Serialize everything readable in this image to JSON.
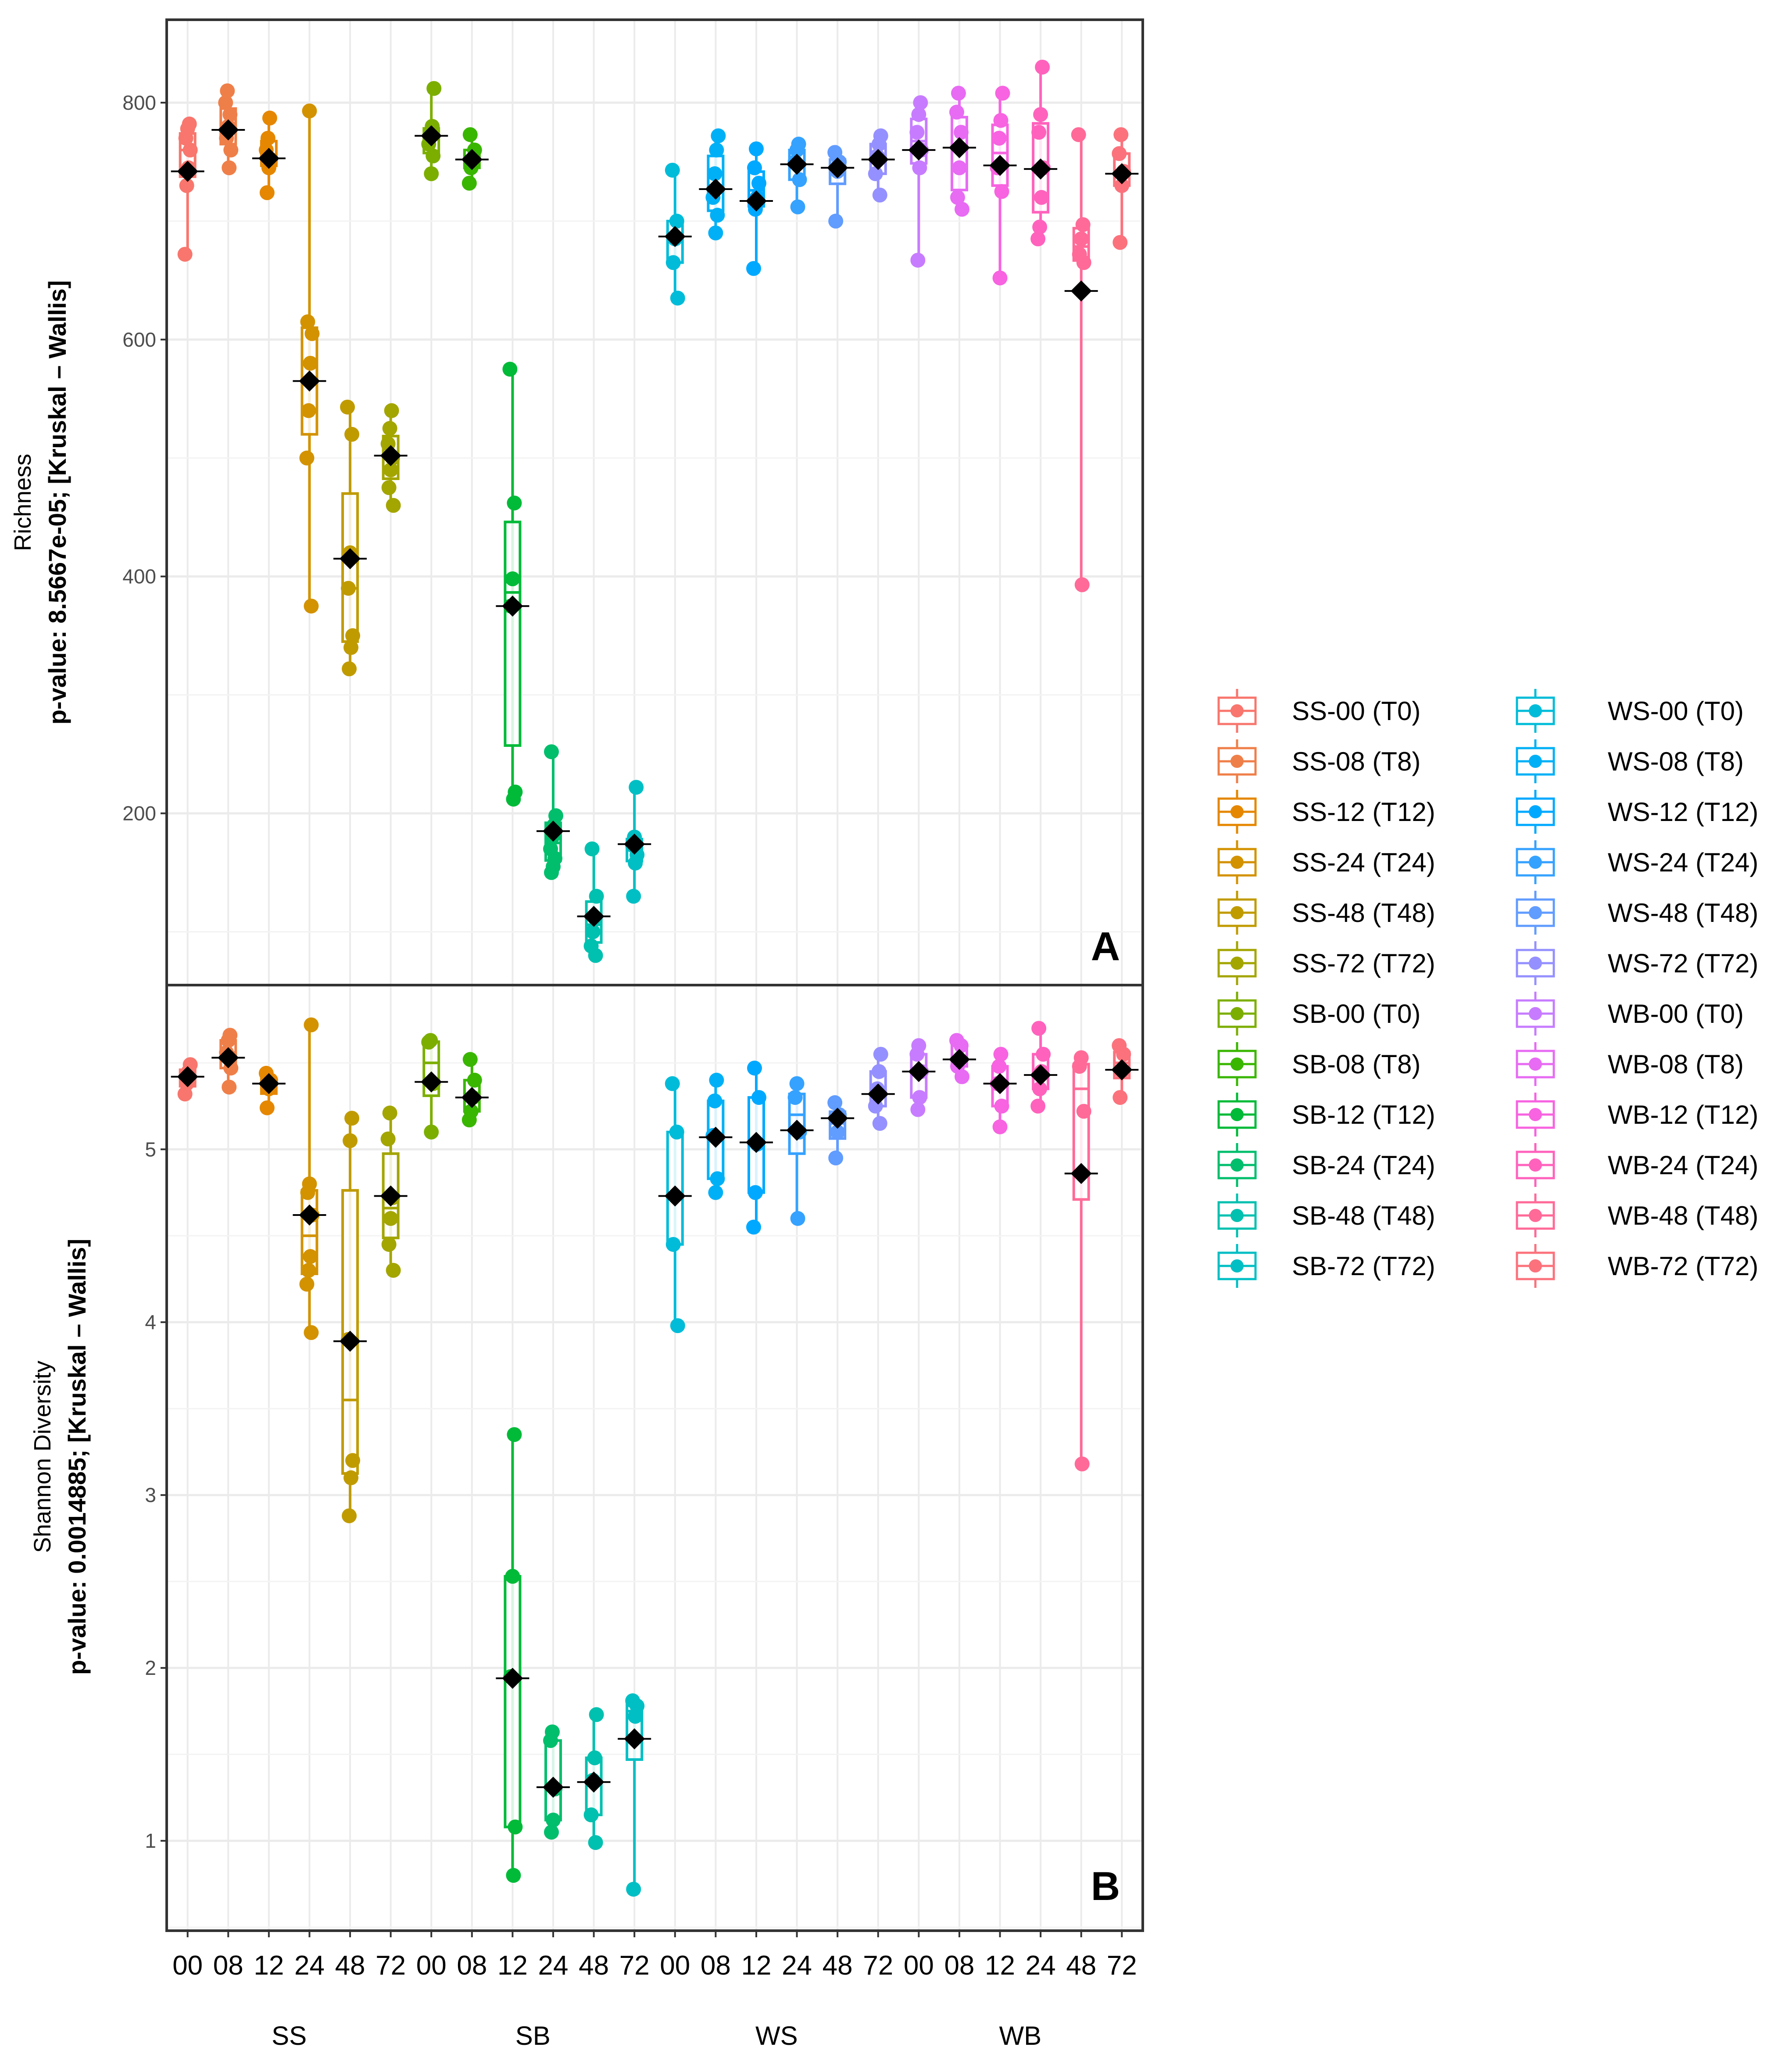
{
  "chart_data": [
    {
      "panel": "A",
      "type": "box+strip",
      "ylabel": "Richness",
      "ylabel_stat": "p-value: 8.5667e-05; [Kruskal – Wallis]",
      "ylim": [
        55,
        870
      ],
      "yticks": [
        200,
        400,
        600,
        800
      ],
      "groups": [
        {
          "label": "SS-00 (T0)",
          "points": [
            672,
            730,
            745,
            760,
            770,
            778,
            782
          ],
          "mean": 742
        },
        {
          "label": "SS-08 (T8)",
          "points": [
            745,
            760,
            770,
            780,
            790,
            800,
            810
          ],
          "mean": 777
        },
        {
          "label": "SS-12 (T12)",
          "points": [
            724,
            745,
            752,
            760,
            770,
            787
          ],
          "mean": 753
        },
        {
          "label": "SS-24 (T24)",
          "points": [
            375,
            500,
            540,
            580,
            605,
            615,
            793
          ],
          "mean": 565
        },
        {
          "label": "SS-48 (T48)",
          "points": [
            322,
            340,
            350,
            390,
            420,
            520,
            543
          ],
          "mean": 415
        },
        {
          "label": "SS-72 (T72)",
          "points": [
            460,
            475,
            490,
            500,
            512,
            525,
            540
          ],
          "mean": 502
        },
        {
          "label": "SB-00 (T0)",
          "points": [
            740,
            755,
            765,
            773,
            780,
            812
          ],
          "mean": 772
        },
        {
          "label": "SB-08 (T8)",
          "points": [
            732,
            745,
            752,
            760,
            773
          ],
          "mean": 752
        },
        {
          "label": "SB-12 (T12)",
          "points": [
            212,
            218,
            375,
            398,
            462,
            575
          ],
          "mean": 375
        },
        {
          "label": "SB-24 (T24)",
          "points": [
            150,
            155,
            162,
            170,
            180,
            190,
            198,
            252
          ],
          "mean": 185
        },
        {
          "label": "SB-48 (T48)",
          "points": [
            80,
            88,
            100,
            112,
            130,
            170
          ],
          "mean": 113
        },
        {
          "label": "SB-72 (T72)",
          "points": [
            130,
            158,
            165,
            173,
            180,
            222
          ],
          "mean": 174
        },
        {
          "label": "WS-00 (T0)",
          "points": [
            635,
            665,
            685,
            700,
            743
          ],
          "mean": 687
        },
        {
          "label": "WS-08 (T8)",
          "points": [
            690,
            705,
            720,
            740,
            760,
            772
          ],
          "mean": 727
        },
        {
          "label": "WS-12 (T12)",
          "points": [
            660,
            710,
            720,
            732,
            745,
            761
          ],
          "mean": 717
        },
        {
          "label": "WS-24 (T24)",
          "points": [
            712,
            735,
            750,
            760,
            765
          ],
          "mean": 748
        },
        {
          "label": "WS-48 (T48)",
          "points": [
            700,
            742,
            750,
            758
          ],
          "mean": 745
        },
        {
          "label": "WS-72 (T72)",
          "points": [
            722,
            740,
            755,
            765,
            772
          ],
          "mean": 752
        },
        {
          "label": "WB-00 (T0)",
          "points": [
            667,
            745,
            760,
            775,
            790,
            800
          ],
          "mean": 760
        },
        {
          "label": "WB-08 (T8)",
          "points": [
            710,
            720,
            745,
            775,
            792,
            808
          ],
          "mean": 762
        },
        {
          "label": "WB-12 (T12)",
          "points": [
            652,
            725,
            745,
            770,
            785,
            808
          ],
          "mean": 747
        },
        {
          "label": "WB-24 (T24)",
          "points": [
            685,
            695,
            720,
            745,
            775,
            790,
            830
          ],
          "mean": 744
        },
        {
          "label": "WB-48 (T48)",
          "points": [
            393,
            665,
            672,
            685,
            697,
            773
          ],
          "mean": 641
        },
        {
          "label": "WB-72 (T72)",
          "points": [
            682,
            730,
            742,
            757,
            773
          ],
          "mean": 740
        }
      ]
    },
    {
      "panel": "B",
      "type": "box+strip",
      "ylabel": "Shannon Diversity",
      "ylabel_stat": "p-value: 0.0014885; [Kruskal – Wallis]",
      "ylim": [
        0.48,
        5.95
      ],
      "yticks": [
        1,
        2,
        3,
        4,
        5
      ],
      "groups": [
        {
          "label": "SS-00 (T0)",
          "points": [
            5.32,
            5.38,
            5.45,
            5.49
          ],
          "mean": 5.42
        },
        {
          "label": "SS-08 (T8)",
          "points": [
            5.36,
            5.47,
            5.56,
            5.63,
            5.66
          ],
          "mean": 5.53
        },
        {
          "label": "SS-12 (T12)",
          "points": [
            5.24,
            5.35,
            5.4,
            5.44
          ],
          "mean": 5.38
        },
        {
          "label": "SS-24 (T24)",
          "points": [
            3.94,
            4.22,
            4.3,
            4.38,
            4.62,
            4.75,
            4.8,
            5.72
          ],
          "mean": 4.62
        },
        {
          "label": "SS-48 (T48)",
          "points": [
            2.88,
            3.1,
            3.2,
            3.9,
            5.05,
            5.18
          ],
          "mean": 3.89
        },
        {
          "label": "SS-72 (T72)",
          "points": [
            4.3,
            4.45,
            4.6,
            4.72,
            5.06,
            5.21
          ],
          "mean": 4.73
        },
        {
          "label": "SB-00 (T0)",
          "points": [
            5.1,
            5.38,
            5.62,
            5.63
          ],
          "mean": 5.39
        },
        {
          "label": "SB-08 (T8)",
          "points": [
            5.17,
            5.22,
            5.3,
            5.4,
            5.52
          ],
          "mean": 5.3
        },
        {
          "label": "SB-12 (T12)",
          "points": [
            0.8,
            1.08,
            1.95,
            2.53,
            3.35
          ],
          "mean": 1.94
        },
        {
          "label": "SB-24 (T24)",
          "points": [
            1.05,
            1.12,
            1.3,
            1.58,
            1.63
          ],
          "mean": 1.31
        },
        {
          "label": "SB-48 (T48)",
          "points": [
            0.99,
            1.15,
            1.35,
            1.48,
            1.73
          ],
          "mean": 1.34
        },
        {
          "label": "SB-72 (T72)",
          "points": [
            0.72,
            1.72,
            1.78,
            1.81
          ],
          "mean": 1.59
        },
        {
          "label": "WS-00 (T0)",
          "points": [
            3.98,
            4.45,
            4.73,
            5.1,
            5.38
          ],
          "mean": 4.73
        },
        {
          "label": "WS-08 (T8)",
          "points": [
            4.75,
            4.83,
            5.08,
            5.28,
            5.4
          ],
          "mean": 5.07
        },
        {
          "label": "WS-12 (T12)",
          "points": [
            4.55,
            4.75,
            5.03,
            5.3,
            5.47
          ],
          "mean": 5.04
        },
        {
          "label": "WS-24 (T24)",
          "points": [
            4.6,
            5.1,
            5.3,
            5.38
          ],
          "mean": 5.11
        },
        {
          "label": "WS-48 (T48)",
          "points": [
            4.95,
            5.1,
            5.2,
            5.27
          ],
          "mean": 5.18
        },
        {
          "label": "WS-72 (T72)",
          "points": [
            5.15,
            5.25,
            5.35,
            5.45,
            5.55
          ],
          "mean": 5.32
        },
        {
          "label": "WB-00 (T0)",
          "points": [
            5.23,
            5.3,
            5.45,
            5.55,
            5.6
          ],
          "mean": 5.45
        },
        {
          "label": "WB-08 (T8)",
          "points": [
            5.42,
            5.48,
            5.52,
            5.6,
            5.63
          ],
          "mean": 5.52
        },
        {
          "label": "WB-12 (T12)",
          "points": [
            5.13,
            5.25,
            5.38,
            5.48,
            5.55
          ],
          "mean": 5.38
        },
        {
          "label": "WB-24 (T24)",
          "points": [
            5.25,
            5.35,
            5.45,
            5.55,
            5.7
          ],
          "mean": 5.43
        },
        {
          "label": "WB-48 (T48)",
          "points": [
            3.18,
            5.22,
            5.48,
            5.53
          ],
          "mean": 4.86
        },
        {
          "label": "WB-72 (T72)",
          "points": [
            5.3,
            5.45,
            5.55,
            5.6
          ],
          "mean": 5.46
        }
      ]
    }
  ],
  "x_tick_labels": [
    "00",
    "08",
    "12",
    "24",
    "48",
    "72",
    "00",
    "08",
    "12",
    "24",
    "48",
    "72",
    "00",
    "08",
    "12",
    "24",
    "48",
    "72",
    "00",
    "08",
    "12",
    "24",
    "48",
    "72"
  ],
  "x_group_labels": [
    "SS",
    "SB",
    "WS",
    "WB"
  ],
  "legend": [
    {
      "label": "SS-00 (T0)",
      "color": "#F8766D"
    },
    {
      "label": "SS-08 (T8)",
      "color": "#EF7F49"
    },
    {
      "label": "SS-12 (T12)",
      "color": "#E58700"
    },
    {
      "label": "SS-24 (T24)",
      "color": "#D39200"
    },
    {
      "label": "SS-48 (T48)",
      "color": "#C09B00"
    },
    {
      "label": "SS-72 (T72)",
      "color": "#A3A500"
    },
    {
      "label": "SB-00 (T0)",
      "color": "#7CAE00"
    },
    {
      "label": "SB-08 (T8)",
      "color": "#39B600"
    },
    {
      "label": "SB-12 (T12)",
      "color": "#00BA38"
    },
    {
      "label": "SB-24 (T24)",
      "color": "#00BE6C"
    },
    {
      "label": "SB-48 (T48)",
      "color": "#00C0AF"
    },
    {
      "label": "SB-72 (T72)",
      "color": "#00BFC4"
    },
    {
      "label": "WS-00 (T0)",
      "color": "#00BCD8"
    },
    {
      "label": "WS-08 (T8)",
      "color": "#00B0F6"
    },
    {
      "label": "WS-12 (T12)",
      "color": "#00A9FF"
    },
    {
      "label": "WS-24 (T24)",
      "color": "#35A2FF"
    },
    {
      "label": "WS-48 (T48)",
      "color": "#619CFF"
    },
    {
      "label": "WS-72 (T72)",
      "color": "#9590FF"
    },
    {
      "label": "WB-00 (T0)",
      "color": "#C77CFF"
    },
    {
      "label": "WB-08 (T8)",
      "color": "#E76BF3"
    },
    {
      "label": "WB-12 (T12)",
      "color": "#F763E0"
    },
    {
      "label": "WB-24 (T24)",
      "color": "#FF62BC"
    },
    {
      "label": "WB-48 (T48)",
      "color": "#FF6A98"
    },
    {
      "label": "WB-72 (T72)",
      "color": "#FB727C"
    }
  ]
}
